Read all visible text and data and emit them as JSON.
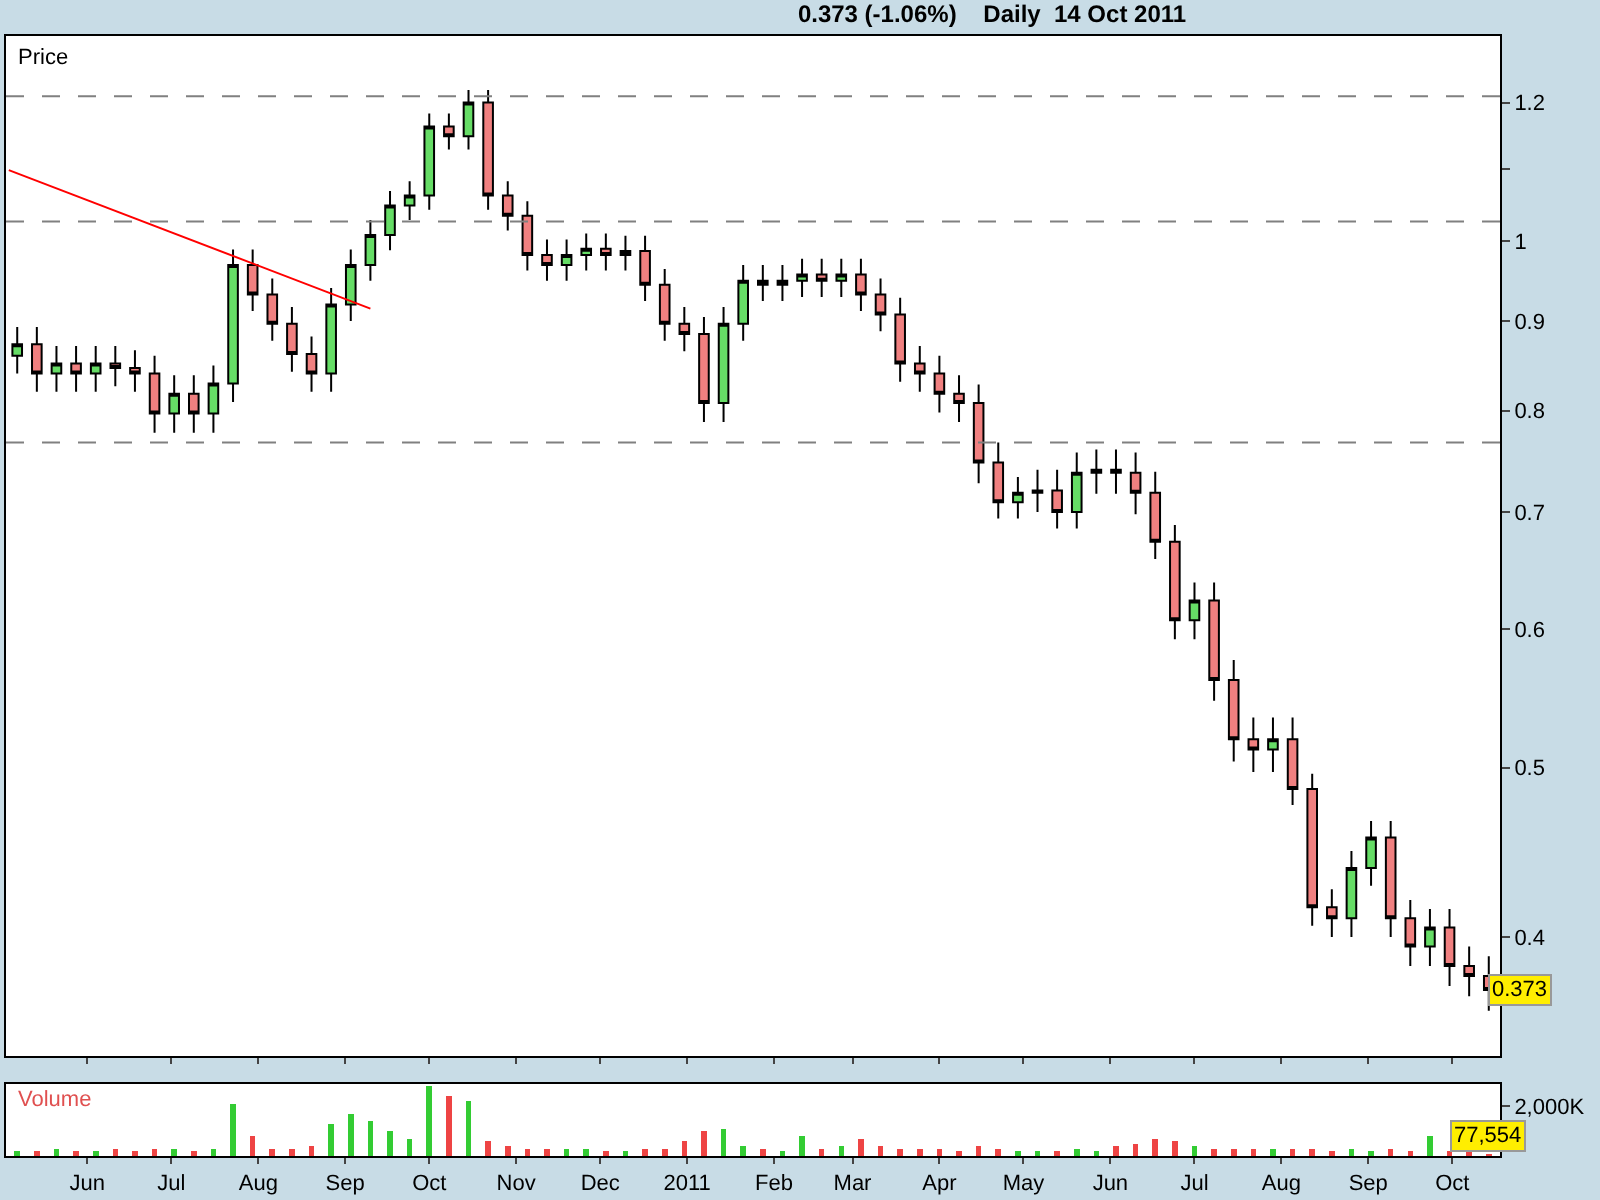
{
  "chart_data": [
    {
      "type": "candlestick",
      "title": "0.373 (-1.06%)    Daily  14 Oct 2011",
      "ylabel": "Price",
      "x": [
        "2010-05-07",
        "2010-05-14",
        "2010-05-21",
        "2010-05-28",
        "2010-06-04",
        "2010-06-11",
        "2010-06-18",
        "2010-06-25",
        "2010-07-02",
        "2010-07-09",
        "2010-07-16",
        "2010-07-23",
        "2010-07-30",
        "2010-08-06",
        "2010-08-13",
        "2010-08-20",
        "2010-08-27",
        "2010-09-03",
        "2010-09-10",
        "2010-09-17",
        "2010-09-24",
        "2010-10-01",
        "2010-10-08",
        "2010-10-15",
        "2010-10-22",
        "2010-10-29",
        "2010-11-05",
        "2010-11-12",
        "2010-11-19",
        "2010-11-26",
        "2010-12-03",
        "2010-12-10",
        "2010-12-17",
        "2010-12-24",
        "2010-12-31",
        "2011-01-07",
        "2011-01-14",
        "2011-01-21",
        "2011-01-28",
        "2011-02-04",
        "2011-02-11",
        "2011-02-18",
        "2011-02-25",
        "2011-03-04",
        "2011-03-11",
        "2011-03-18",
        "2011-03-25",
        "2011-04-01",
        "2011-04-08",
        "2011-04-15",
        "2011-04-22",
        "2011-04-29",
        "2011-05-06",
        "2011-05-13",
        "2011-05-20",
        "2011-05-27",
        "2011-06-03",
        "2011-06-10",
        "2011-06-17",
        "2011-06-24",
        "2011-07-01",
        "2011-07-08",
        "2011-07-15",
        "2011-07-22",
        "2011-07-29",
        "2011-08-05",
        "2011-08-12",
        "2011-08-19",
        "2011-08-26",
        "2011-09-02",
        "2011-09-09",
        "2011-09-16",
        "2011-09-23",
        "2011-09-30",
        "2011-10-07",
        "2011-10-14"
      ],
      "ohlc": [
        [
          0.86,
          0.893,
          0.84,
          0.873
        ],
        [
          0.873,
          0.893,
          0.82,
          0.84
        ],
        [
          0.84,
          0.871,
          0.82,
          0.851
        ],
        [
          0.851,
          0.871,
          0.82,
          0.84
        ],
        [
          0.84,
          0.871,
          0.82,
          0.851
        ],
        [
          0.851,
          0.871,
          0.826,
          0.846
        ],
        [
          0.846,
          0.866,
          0.82,
          0.84
        ],
        [
          0.84,
          0.86,
          0.777,
          0.797
        ],
        [
          0.797,
          0.838,
          0.777,
          0.818
        ],
        [
          0.818,
          0.838,
          0.777,
          0.797
        ],
        [
          0.797,
          0.849,
          0.777,
          0.829
        ],
        [
          0.829,
          0.989,
          0.809,
          0.969
        ],
        [
          0.969,
          0.989,
          0.912,
          0.932
        ],
        [
          0.932,
          0.952,
          0.877,
          0.897
        ],
        [
          0.897,
          0.917,
          0.842,
          0.862
        ],
        [
          0.862,
          0.882,
          0.82,
          0.84
        ],
        [
          0.84,
          0.94,
          0.82,
          0.92
        ],
        [
          0.92,
          0.989,
          0.9,
          0.969
        ],
        [
          0.969,
          1.028,
          0.949,
          1.008
        ],
        [
          1.008,
          1.068,
          0.988,
          1.048
        ],
        [
          1.048,
          1.082,
          1.028,
          1.062
        ],
        [
          1.062,
          1.183,
          1.042,
          1.163
        ],
        [
          1.163,
          1.183,
          1.128,
          1.148
        ],
        [
          1.148,
          1.22,
          1.128,
          1.2
        ],
        [
          1.2,
          1.22,
          1.042,
          1.062
        ],
        [
          1.062,
          1.082,
          1.014,
          1.034
        ],
        [
          1.034,
          1.054,
          0.962,
          0.982
        ],
        [
          0.982,
          1.002,
          0.949,
          0.969
        ],
        [
          0.969,
          1.002,
          0.949,
          0.982
        ],
        [
          0.982,
          1.01,
          0.962,
          0.99
        ],
        [
          0.99,
          1.01,
          0.962,
          0.982
        ],
        [
          0.982,
          1.007,
          0.962,
          0.987
        ],
        [
          0.987,
          1.007,
          0.924,
          0.944
        ],
        [
          0.944,
          0.964,
          0.877,
          0.897
        ],
        [
          0.897,
          0.917,
          0.865,
          0.885
        ],
        [
          0.885,
          0.905,
          0.788,
          0.808
        ],
        [
          0.808,
          0.917,
          0.788,
          0.897
        ],
        [
          0.897,
          0.969,
          0.877,
          0.949
        ],
        [
          0.949,
          0.969,
          0.924,
          0.944
        ],
        [
          0.944,
          0.969,
          0.924,
          0.949
        ],
        [
          0.949,
          0.977,
          0.929,
          0.957
        ],
        [
          0.957,
          0.977,
          0.929,
          0.949
        ],
        [
          0.949,
          0.977,
          0.929,
          0.957
        ],
        [
          0.957,
          0.977,
          0.912,
          0.932
        ],
        [
          0.932,
          0.952,
          0.888,
          0.908
        ],
        [
          0.908,
          0.928,
          0.831,
          0.851
        ],
        [
          0.851,
          0.871,
          0.82,
          0.84
        ],
        [
          0.84,
          0.86,
          0.798,
          0.818
        ],
        [
          0.818,
          0.838,
          0.788,
          0.808
        ],
        [
          0.808,
          0.828,
          0.727,
          0.747
        ],
        [
          0.747,
          0.767,
          0.694,
          0.709
        ],
        [
          0.709,
          0.733,
          0.694,
          0.718
        ],
        [
          0.718,
          0.74,
          0.7,
          0.72
        ],
        [
          0.72,
          0.74,
          0.685,
          0.7
        ],
        [
          0.7,
          0.757,
          0.685,
          0.737
        ],
        [
          0.737,
          0.76,
          0.717,
          0.74
        ],
        [
          0.74,
          0.76,
          0.717,
          0.737
        ],
        [
          0.737,
          0.757,
          0.698,
          0.718
        ],
        [
          0.718,
          0.738,
          0.658,
          0.673
        ],
        [
          0.673,
          0.688,
          0.592,
          0.607
        ],
        [
          0.607,
          0.638,
          0.592,
          0.623
        ],
        [
          0.623,
          0.638,
          0.546,
          0.561
        ],
        [
          0.561,
          0.576,
          0.504,
          0.519
        ],
        [
          0.519,
          0.534,
          0.497,
          0.512
        ],
        [
          0.512,
          0.534,
          0.497,
          0.519
        ],
        [
          0.519,
          0.534,
          0.476,
          0.486
        ],
        [
          0.486,
          0.496,
          0.406,
          0.416
        ],
        [
          0.416,
          0.426,
          0.4,
          0.41
        ],
        [
          0.41,
          0.448,
          0.4,
          0.438
        ],
        [
          0.438,
          0.466,
          0.428,
          0.456
        ],
        [
          0.456,
          0.466,
          0.4,
          0.41
        ],
        [
          0.41,
          0.42,
          0.385,
          0.395
        ],
        [
          0.395,
          0.415,
          0.385,
          0.405
        ],
        [
          0.405,
          0.415,
          0.375,
          0.385
        ],
        [
          0.385,
          0.395,
          0.37,
          0.38
        ],
        [
          0.38,
          0.39,
          0.363,
          0.373
        ]
      ],
      "series": [
        {
          "type": "line",
          "color": "#ff0000",
          "x": [
            "2010-05-04",
            "2010-09-10"
          ],
          "values": [
            1.098,
            0.915
          ]
        }
      ],
      "xlim": [
        "2010-05-03",
        "2011-10-18"
      ],
      "xticks": [
        {
          "value": "2010-06-01",
          "label": null
        },
        {
          "value": "2010-07-01",
          "label": null
        },
        {
          "value": "2010-08-01",
          "label": null
        },
        {
          "value": "2010-09-01",
          "label": null
        },
        {
          "value": "2010-10-01",
          "label": null
        },
        {
          "value": "2010-11-01",
          "label": null
        },
        {
          "value": "2010-12-01",
          "label": null
        },
        {
          "value": "2011-01-01",
          "label": null
        },
        {
          "value": "2011-02-01",
          "label": null
        },
        {
          "value": "2011-03-01",
          "label": null
        },
        {
          "value": "2011-04-01",
          "label": null
        },
        {
          "value": "2011-05-01",
          "label": null
        },
        {
          "value": "2011-06-01",
          "label": null
        },
        {
          "value": "2011-07-01",
          "label": null
        },
        {
          "value": "2011-08-01",
          "label": null
        },
        {
          "value": "2011-09-01",
          "label": null
        },
        {
          "value": "2011-10-01",
          "label": null
        }
      ],
      "ylim": [
        0.342,
        1.31
      ],
      "yticks": [
        0.4,
        0.5,
        0.6,
        0.7,
        0.8,
        0.9,
        1,
        {
          "value": 1.1,
          "label": null
        },
        1.2
      ],
      "log": true,
      "grid": false,
      "tick_labels": "y",
      "ref_lines": [
        {
          "axis": "y",
          "value": 1.21,
          "color": "#808080",
          "line_style": "dashed"
        },
        {
          "axis": "y",
          "value": 1.026,
          "color": "#808080",
          "line_style": "dashed"
        },
        {
          "axis": "y",
          "value": 0.767,
          "color": "#808080",
          "line_style": "dashed"
        }
      ],
      "annotations": [
        {
          "text": "0.373",
          "x": "2011-10-14",
          "y": 0.373
        }
      ]
    },
    {
      "type": "bar",
      "ylabel": "Volume",
      "ylim": [
        0,
        2900000
      ],
      "yticks": [
        {
          "value": 2000000,
          "label": "2,000K"
        }
      ],
      "x": [
        "2010-05-07",
        "2010-05-14",
        "2010-05-21",
        "2010-05-28",
        "2010-06-04",
        "2010-06-11",
        "2010-06-18",
        "2010-06-25",
        "2010-07-02",
        "2010-07-09",
        "2010-07-16",
        "2010-07-23",
        "2010-07-30",
        "2010-08-06",
        "2010-08-13",
        "2010-08-20",
        "2010-08-27",
        "2010-09-03",
        "2010-09-10",
        "2010-09-17",
        "2010-09-24",
        "2010-10-01",
        "2010-10-08",
        "2010-10-15",
        "2010-10-22",
        "2010-10-29",
        "2010-11-05",
        "2010-11-12",
        "2010-11-19",
        "2010-11-26",
        "2010-12-03",
        "2010-12-10",
        "2010-12-17",
        "2010-12-24",
        "2010-12-31",
        "2011-01-07",
        "2011-01-14",
        "2011-01-21",
        "2011-01-28",
        "2011-02-04",
        "2011-02-11",
        "2011-02-18",
        "2011-02-25",
        "2011-03-04",
        "2011-03-11",
        "2011-03-18",
        "2011-03-25",
        "2011-04-01",
        "2011-04-08",
        "2011-04-15",
        "2011-04-22",
        "2011-04-29",
        "2011-05-06",
        "2011-05-13",
        "2011-05-20",
        "2011-05-27",
        "2011-06-03",
        "2011-06-10",
        "2011-06-17",
        "2011-06-24",
        "2011-07-01",
        "2011-07-08",
        "2011-07-15",
        "2011-07-22",
        "2011-07-29",
        "2011-08-05",
        "2011-08-12",
        "2011-08-19",
        "2011-08-26",
        "2011-09-02",
        "2011-09-09",
        "2011-09-16",
        "2011-09-23",
        "2011-09-30",
        "2011-10-07",
        "2011-10-14"
      ],
      "values": [
        200000,
        200000,
        300000,
        200000,
        200000,
        300000,
        200000,
        300000,
        300000,
        200000,
        300000,
        2100000,
        800000,
        300000,
        300000,
        400000,
        1300000,
        1700000,
        1400000,
        1000000,
        700000,
        2800000,
        2400000,
        2200000,
        600000,
        400000,
        300000,
        300000,
        300000,
        300000,
        200000,
        200000,
        300000,
        300000,
        600000,
        1000000,
        1100000,
        400000,
        300000,
        200000,
        800000,
        300000,
        400000,
        700000,
        400000,
        300000,
        300000,
        300000,
        200000,
        400000,
        300000,
        200000,
        200000,
        200000,
        300000,
        200000,
        400000,
        500000,
        700000,
        600000,
        400000,
        300000,
        300000,
        300000,
        300000,
        300000,
        300000,
        200000,
        300000,
        200000,
        300000,
        200000,
        800000,
        200000,
        200000,
        77554
      ],
      "colors": [
        "#33cc33",
        "#ee4444",
        "#33cc33",
        "#ee4444",
        "#33cc33",
        "#ee4444",
        "#ee4444",
        "#ee4444",
        "#33cc33",
        "#ee4444",
        "#33cc33",
        "#33cc33",
        "#ee4444",
        "#ee4444",
        "#ee4444",
        "#ee4444",
        "#33cc33",
        "#33cc33",
        "#33cc33",
        "#33cc33",
        "#33cc33",
        "#33cc33",
        "#ee4444",
        "#33cc33",
        "#ee4444",
        "#ee4444",
        "#ee4444",
        "#ee4444",
        "#33cc33",
        "#33cc33",
        "#ee4444",
        "#33cc33",
        "#ee4444",
        "#ee4444",
        "#ee4444",
        "#ee4444",
        "#33cc33",
        "#33cc33",
        "#ee4444",
        "#33cc33",
        "#33cc33",
        "#ee4444",
        "#33cc33",
        "#ee4444",
        "#ee4444",
        "#ee4444",
        "#ee4444",
        "#ee4444",
        "#ee4444",
        "#ee4444",
        "#ee4444",
        "#33cc33",
        "#33cc33",
        "#ee4444",
        "#33cc33",
        "#33cc33",
        "#ee4444",
        "#ee4444",
        "#ee4444",
        "#ee4444",
        "#33cc33",
        "#ee4444",
        "#ee4444",
        "#ee4444",
        "#33cc33",
        "#ee4444",
        "#ee4444",
        "#ee4444",
        "#33cc33",
        "#33cc33",
        "#ee4444",
        "#ee4444",
        "#33cc33",
        "#ee4444",
        "#ee4444",
        "#ee4444"
      ],
      "value_labels": [
        null,
        null,
        null,
        null,
        null,
        null,
        null,
        null,
        null,
        null,
        null,
        null,
        null,
        null,
        null,
        null,
        null,
        null,
        null,
        null,
        null,
        null,
        null,
        null,
        null,
        null,
        null,
        null,
        null,
        null,
        null,
        null,
        null,
        null,
        null,
        null,
        null,
        null,
        null,
        null,
        null,
        null,
        null,
        null,
        null,
        null,
        null,
        null,
        null,
        null,
        null,
        null,
        null,
        null,
        null,
        null,
        null,
        null,
        null,
        null,
        null,
        null,
        null,
        null,
        null,
        null,
        null,
        null,
        null,
        null,
        null,
        null,
        null,
        null,
        null,
        "77,554"
      ],
      "xlim": [
        "2010-05-03",
        "2011-10-18"
      ],
      "xticks": [
        {
          "value": "2010-06-01",
          "label": "Jun"
        },
        {
          "value": "2010-07-01",
          "label": "Jul"
        },
        {
          "value": "2010-08-01",
          "label": "Aug"
        },
        {
          "value": "2010-09-01",
          "label": "Sep"
        },
        {
          "value": "2010-10-01",
          "label": "Oct"
        },
        {
          "value": "2010-11-01",
          "label": "Nov"
        },
        {
          "value": "2010-12-01",
          "label": "Dec"
        },
        {
          "value": "2011-01-01",
          "label": "2011"
        },
        {
          "value": "2011-02-01",
          "label": "Feb"
        },
        {
          "value": "2011-03-01",
          "label": "Mar"
        },
        {
          "value": "2011-04-01",
          "label": "Apr"
        },
        {
          "value": "2011-05-01",
          "label": "May"
        },
        {
          "value": "2011-06-01",
          "label": "Jun"
        },
        {
          "value": "2011-07-01",
          "label": "Jul"
        },
        {
          "value": "2011-08-01",
          "label": "Aug"
        },
        {
          "value": "2011-09-01",
          "label": "Sep"
        },
        {
          "value": "2011-10-01",
          "label": "Oct"
        }
      ]
    }
  ]
}
